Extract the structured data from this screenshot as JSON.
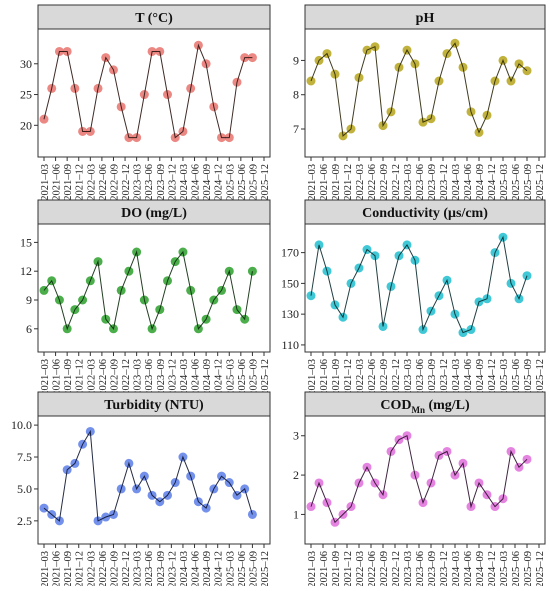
{
  "figure": {
    "x_tick_labels": [
      "2021–03",
      "2021–06",
      "2021–09",
      "2021–12",
      "2022–03",
      "2022–06",
      "2022–09",
      "2022–12",
      "2023–03",
      "2023–06",
      "2023–09",
      "2023–12",
      "2024–03",
      "2024–06",
      "2024–09",
      "2024–12",
      "2025–03",
      "2025–06",
      "2025–09",
      "2025–12"
    ]
  },
  "chart_data": [
    {
      "id": "temperature",
      "type": "line",
      "title": "T (°C)",
      "title_sub": "",
      "title_suffix": "",
      "yticks": [
        20,
        25,
        30
      ],
      "ylim": [
        15.5,
        35
      ],
      "color": "#e9736d",
      "line_color": "#2a1410",
      "x": [
        "2021-03",
        "2021-05",
        "2021-07",
        "2021-09",
        "2021-11",
        "2022-01",
        "2022-03",
        "2022-05",
        "2022-07",
        "2022-09",
        "2022-11",
        "2023-01",
        "2023-03",
        "2023-05",
        "2023-07",
        "2023-09",
        "2023-11",
        "2024-01",
        "2024-03",
        "2024-05",
        "2024-07",
        "2024-09",
        "2024-11",
        "2025-01",
        "2025-03",
        "2025-05",
        "2025-07",
        "2025-09"
      ],
      "values": [
        21,
        26,
        32,
        32,
        26,
        19,
        19,
        26,
        31,
        29,
        23,
        18,
        18,
        25,
        32,
        32,
        25,
        18,
        19,
        26,
        33,
        30,
        23,
        18,
        18,
        27,
        31,
        31
      ]
    },
    {
      "id": "ph",
      "type": "line",
      "title": "pH",
      "title_sub": "",
      "title_suffix": "",
      "yticks": [
        7,
        8,
        9
      ],
      "ylim": [
        6.3,
        9.8
      ],
      "color": "#b5a51a",
      "line_color": "#2b2608",
      "x": [
        "2021-03",
        "2021-05",
        "2021-07",
        "2021-09",
        "2021-11",
        "2022-01",
        "2022-03",
        "2022-05",
        "2022-07",
        "2022-09",
        "2022-11",
        "2023-01",
        "2023-03",
        "2023-05",
        "2023-07",
        "2023-09",
        "2023-11",
        "2024-01",
        "2024-03",
        "2024-05",
        "2024-07",
        "2024-09",
        "2024-11",
        "2025-01",
        "2025-03",
        "2025-05",
        "2025-07",
        "2025-09"
      ],
      "values": [
        8.4,
        9.0,
        9.2,
        8.6,
        6.8,
        7.0,
        8.5,
        9.3,
        9.4,
        7.1,
        7.5,
        8.8,
        9.3,
        8.9,
        7.2,
        7.3,
        8.4,
        9.2,
        9.5,
        8.8,
        7.5,
        6.9,
        7.4,
        8.4,
        9.0,
        8.4,
        8.9,
        8.7
      ]
    },
    {
      "id": "do",
      "type": "line",
      "title": "DO (mg/L)",
      "title_sub": "",
      "title_suffix": "",
      "yticks": [
        6,
        9,
        12,
        15
      ],
      "ylim": [
        4,
        16.5
      ],
      "color": "#2ca02c",
      "line_color": "#0b2a0b",
      "x": [
        "2021-03",
        "2021-05",
        "2021-07",
        "2021-09",
        "2021-11",
        "2022-01",
        "2022-03",
        "2022-05",
        "2022-07",
        "2022-09",
        "2022-11",
        "2023-01",
        "2023-03",
        "2023-05",
        "2023-07",
        "2023-09",
        "2023-11",
        "2024-01",
        "2024-03",
        "2024-05",
        "2024-07",
        "2024-09",
        "2024-11",
        "2025-01",
        "2025-03",
        "2025-05",
        "2025-07",
        "2025-09"
      ],
      "values": [
        10,
        11,
        9,
        6,
        8,
        9,
        11,
        13,
        7,
        6,
        10,
        12,
        14,
        9,
        6,
        8,
        11,
        13,
        14,
        10,
        6,
        7,
        9,
        10,
        12,
        8,
        7,
        12
      ]
    },
    {
      "id": "conductivity",
      "type": "line",
      "title": "Conductivity (μs/cm)",
      "title_sub": "",
      "title_suffix": "",
      "yticks": [
        110,
        130,
        150,
        170
      ],
      "ylim": [
        108,
        186
      ],
      "color": "#1fbecf",
      "line_color": "#0a2a2e",
      "x": [
        "2021-03",
        "2021-05",
        "2021-07",
        "2021-09",
        "2021-11",
        "2022-01",
        "2022-03",
        "2022-05",
        "2022-07",
        "2022-09",
        "2022-11",
        "2023-01",
        "2023-03",
        "2023-05",
        "2023-07",
        "2023-09",
        "2023-11",
        "2024-01",
        "2024-03",
        "2024-05",
        "2024-07",
        "2024-09",
        "2024-11",
        "2025-01",
        "2025-03",
        "2025-05",
        "2025-07",
        "2025-09"
      ],
      "values": [
        142,
        175,
        158,
        136,
        128,
        150,
        160,
        172,
        168,
        122,
        148,
        168,
        175,
        165,
        120,
        132,
        142,
        152,
        130,
        118,
        120,
        138,
        140,
        170,
        180,
        150,
        140,
        155
      ]
    },
    {
      "id": "turbidity",
      "type": "line",
      "title": "Turbidity (NTU)",
      "title_sub": "",
      "title_suffix": "",
      "yticks": [
        2.5,
        5.0,
        7.5,
        10.0
      ],
      "ylim": [
        1.0,
        10.4
      ],
      "color": "#5a7de8",
      "line_color": "#0d1530",
      "x": [
        "2021-03",
        "2021-05",
        "2021-07",
        "2021-09",
        "2021-11",
        "2022-01",
        "2022-03",
        "2022-05",
        "2022-07",
        "2022-09",
        "2022-11",
        "2023-01",
        "2023-03",
        "2023-05",
        "2023-07",
        "2023-09",
        "2023-11",
        "2024-01",
        "2024-03",
        "2024-05",
        "2024-07",
        "2024-09",
        "2024-11",
        "2025-01",
        "2025-03",
        "2025-05",
        "2025-07",
        "2025-09"
      ],
      "values": [
        3.5,
        3.0,
        2.5,
        6.5,
        7.0,
        8.5,
        9.5,
        2.5,
        2.8,
        3.0,
        5.0,
        7.0,
        5.0,
        6.0,
        4.5,
        4.0,
        4.5,
        5.5,
        7.5,
        6.0,
        4.0,
        3.5,
        5.0,
        6.0,
        5.5,
        4.5,
        5.0,
        3.0
      ]
    },
    {
      "id": "cod",
      "type": "line",
      "title": "COD",
      "title_sub": "Mn",
      "title_suffix": " (mg/L)",
      "yticks": [
        1,
        2,
        3
      ],
      "ylim": [
        0.35,
        3.4
      ],
      "color": "#df6fda",
      "line_color": "#2b0e2b",
      "x": [
        "2021-03",
        "2021-05",
        "2021-07",
        "2021-09",
        "2021-11",
        "2022-01",
        "2022-03",
        "2022-05",
        "2022-07",
        "2022-09",
        "2022-11",
        "2023-01",
        "2023-03",
        "2023-05",
        "2023-07",
        "2023-09",
        "2023-11",
        "2024-01",
        "2024-03",
        "2024-05",
        "2024-07",
        "2024-09",
        "2024-11",
        "2025-01",
        "2025-03",
        "2025-05",
        "2025-07",
        "2025-09"
      ],
      "values": [
        1.2,
        1.8,
        1.3,
        0.8,
        1.0,
        1.2,
        1.8,
        2.2,
        1.8,
        1.5,
        2.6,
        2.9,
        3.0,
        2.0,
        1.3,
        1.8,
        2.5,
        2.6,
        2.0,
        2.3,
        1.2,
        1.8,
        1.5,
        1.2,
        1.4,
        2.6,
        2.2,
        2.4
      ]
    }
  ]
}
